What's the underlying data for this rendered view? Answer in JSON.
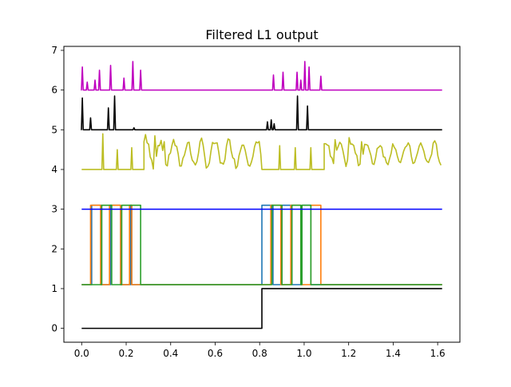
{
  "chart_data": {
    "type": "line",
    "title": "Filtered L1 output",
    "xlabel": "",
    "ylabel": "",
    "xlim": [
      -0.08,
      1.7
    ],
    "ylim": [
      -0.35,
      7.1
    ],
    "x_ticks": [
      0.0,
      0.2,
      0.4,
      0.6,
      0.8,
      1.0,
      1.2,
      1.4,
      1.6
    ],
    "x_tick_labels": [
      "0.0",
      "0.2",
      "0.4",
      "0.6",
      "0.8",
      "1.0",
      "1.2",
      "1.4",
      "1.6"
    ],
    "y_ticks": [
      0,
      1,
      2,
      3,
      4,
      5,
      6,
      7
    ],
    "y_tick_labels": [
      "0",
      "1",
      "2",
      "3",
      "4",
      "5",
      "6",
      "7"
    ],
    "grid": false,
    "legend": "none",
    "series": [
      {
        "color": "#000000",
        "kind": "step",
        "x": [
          0.0,
          0.81,
          0.81,
          1.62
        ],
        "y": [
          0,
          0,
          1,
          1
        ]
      },
      {
        "color": "#1f77b4",
        "kind": "pulses",
        "baseline": 1.1,
        "high": 3.1,
        "pulses": [
          [
            0.045,
            0.09
          ],
          [
            0.13,
            0.175
          ],
          [
            0.22,
            0.225
          ],
          [
            0.81,
            0.86
          ],
          [
            0.9,
            0.945
          ],
          [
            0.99,
            1.03
          ]
        ]
      },
      {
        "color": "#ff7f0e",
        "kind": "pulses",
        "baseline": 1.1,
        "high": 3.1,
        "pulses": [
          [
            0.04,
            0.085
          ],
          [
            0.125,
            0.175
          ],
          [
            0.215,
            0.225
          ],
          [
            0.85,
            0.895
          ],
          [
            0.94,
            0.985
          ],
          [
            1.03,
            1.075
          ]
        ]
      },
      {
        "color": "#2ca02c",
        "kind": "pulses",
        "baseline": 1.1,
        "high": 3.1,
        "pulses": [
          [
            0.09,
            0.135
          ],
          [
            0.18,
            0.265
          ],
          [
            0.855,
            0.9
          ],
          [
            0.945,
            0.985
          ],
          [
            0.99,
            1.03
          ]
        ]
      },
      {
        "color": "#0000ff",
        "kind": "line",
        "x": [
          0.0,
          1.62
        ],
        "y": [
          3,
          3
        ]
      },
      {
        "color": "#bcbd22",
        "kind": "noisy",
        "baseline": 4.0,
        "segments": [
          {
            "x0": 0.0,
            "x1": 0.08,
            "flat": true
          },
          {
            "x0": 0.08,
            "x1": 0.28,
            "flat": true,
            "spikes": [
              [
                0.095,
                4.9
              ],
              [
                0.16,
                4.5
              ],
              [
                0.225,
                4.55
              ]
            ]
          },
          {
            "x0": 0.28,
            "x1": 0.81,
            "flat": false,
            "mean": 4.4,
            "amp": 0.3,
            "peaks": [
              [
                0.29,
                4.88
              ],
              [
                0.33,
                4.85
              ],
              [
                0.37,
                4.7
              ]
            ]
          },
          {
            "x0": 0.81,
            "x1": 1.09,
            "flat": true,
            "spikes": [
              [
                0.89,
                4.6
              ],
              [
                0.96,
                4.55
              ],
              [
                1.03,
                4.55
              ]
            ]
          },
          {
            "x0": 1.09,
            "x1": 1.62,
            "flat": false,
            "mean": 4.4,
            "amp": 0.25,
            "peaks": [
              [
                1.14,
                4.75
              ],
              [
                1.2,
                4.8
              ],
              [
                1.26,
                4.7
              ]
            ]
          }
        ]
      },
      {
        "color": "#000000",
        "kind": "spikes",
        "baseline": 5.0,
        "x_range": [
          0.0,
          1.62
        ],
        "spikes": [
          [
            0.003,
            5.8
          ],
          [
            0.04,
            5.3
          ],
          [
            0.12,
            5.55
          ],
          [
            0.148,
            5.85
          ],
          [
            0.235,
            5.05
          ],
          [
            0.835,
            5.2
          ],
          [
            0.852,
            5.25
          ],
          [
            0.865,
            5.15
          ],
          [
            0.97,
            5.85
          ],
          [
            1.015,
            5.6
          ]
        ]
      },
      {
        "color": "#bf00bf",
        "kind": "spikes",
        "baseline": 6.0,
        "x_range": [
          0.0,
          1.62
        ],
        "spikes": [
          [
            0.003,
            6.58
          ],
          [
            0.025,
            6.2
          ],
          [
            0.06,
            6.25
          ],
          [
            0.08,
            6.5
          ],
          [
            0.13,
            6.62
          ],
          [
            0.19,
            6.3
          ],
          [
            0.23,
            6.72
          ],
          [
            0.265,
            6.5
          ],
          [
            0.862,
            6.38
          ],
          [
            0.905,
            6.45
          ],
          [
            0.968,
            6.45
          ],
          [
            0.985,
            6.25
          ],
          [
            1.003,
            6.72
          ],
          [
            1.022,
            6.58
          ],
          [
            1.075,
            6.35
          ]
        ]
      }
    ]
  }
}
